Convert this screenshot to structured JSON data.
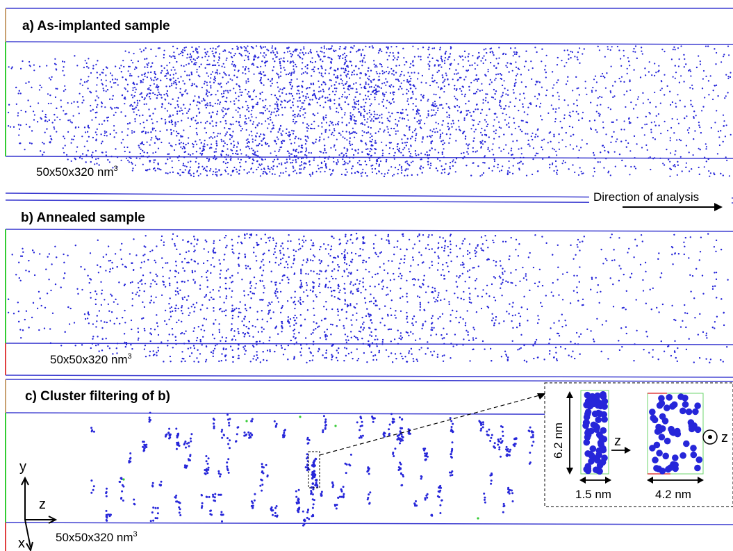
{
  "panels": [
    {
      "title": "a) As-implanted sample",
      "dimension_text": "50x50x320 nm",
      "dimension_sup": "3"
    },
    {
      "title": "b) Annealed sample",
      "dimension_text": "50x50x320 nm",
      "dimension_sup": "3"
    },
    {
      "title": "c) Cluster filtering of b)",
      "dimension_text": "50x50x320 nm",
      "dimension_sup": "3"
    }
  ],
  "direction_label": "Direction of analysis",
  "axes": {
    "y": "y",
    "z": "z",
    "x": "x"
  },
  "inset": {
    "height_label": "6.2 nm",
    "width_label_1": "1.5 nm",
    "width_label_2": "4.2 nm",
    "z_label": "z",
    "z_out_label": "z"
  },
  "colors": {
    "atoms": "#2626d9",
    "frame": "#3b3bd0",
    "accent_green": "#33cc33",
    "accent_red": "#e04040"
  }
}
